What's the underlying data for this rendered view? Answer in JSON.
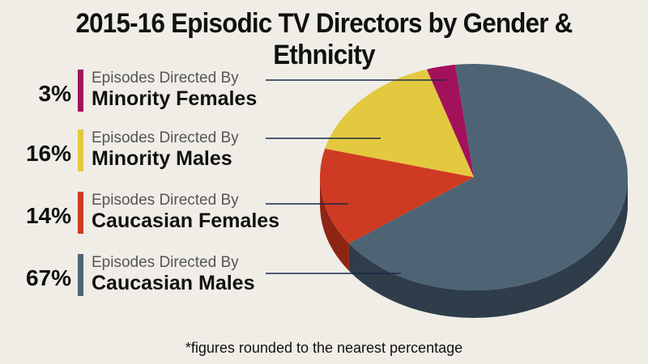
{
  "chart_data": {
    "type": "pie",
    "title": "2015-16 Episodic TV Directors by Gender & Ethnicity",
    "subtitle_prefix": "Episodes Directed By",
    "slices": [
      {
        "label": "Minority Females",
        "value": 3,
        "pct_label": "3%",
        "color": "#a3115a",
        "side_color": "#6e0b3c"
      },
      {
        "label": "Minority Males",
        "value": 16,
        "pct_label": "16%",
        "color": "#e3c93f",
        "side_color": "#a88f25"
      },
      {
        "label": "Caucasian Females",
        "value": 14,
        "pct_label": "14%",
        "color": "#cf3a22",
        "side_color": "#8e2514"
      },
      {
        "label": "Caucasian Males",
        "value": 67,
        "pct_label": "67%",
        "color": "#4e6475",
        "side_color": "#2e3d49"
      }
    ],
    "footnote": "*figures rounded to the nearest percentage"
  }
}
